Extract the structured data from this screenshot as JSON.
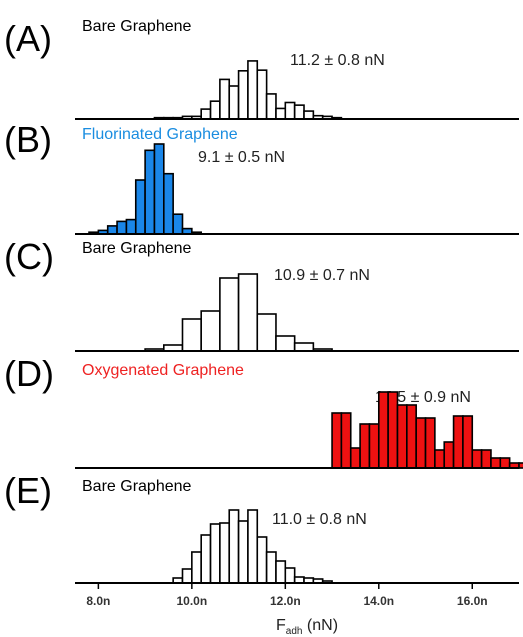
{
  "chart_data": [
    {
      "type": "bar",
      "panel": "(A)",
      "title": "Bare Graphene",
      "annotation": "11.2 ± 0.8 nN",
      "fill": "#ffffff",
      "title_color": "#000000",
      "bin_width": 0.2,
      "x": [
        9.2,
        9.4,
        9.6,
        9.8,
        10.0,
        10.2,
        10.4,
        10.6,
        10.8,
        11.0,
        11.2,
        11.4,
        11.6,
        11.8,
        12.0,
        12.2,
        12.4,
        12.6,
        12.8,
        13.0
      ],
      "values": [
        0.02,
        0.02,
        0.02,
        0.04,
        0.04,
        0.15,
        0.27,
        0.6,
        0.5,
        0.73,
        0.88,
        0.74,
        0.38,
        0.16,
        0.25,
        0.21,
        0.12,
        0.05,
        0.04,
        0.02
      ]
    },
    {
      "type": "bar",
      "panel": "(B)",
      "title": "Fluorinated Graphene",
      "annotation": "9.1 ± 0.5 nN",
      "fill": "#1a86e8",
      "title_color": "#1a8de0",
      "bin_width": 0.2,
      "x": [
        7.8,
        8.0,
        8.2,
        8.4,
        8.6,
        8.8,
        9.0,
        9.2,
        9.4,
        9.6,
        9.8,
        10.0
      ],
      "values": [
        0.02,
        0.04,
        0.09,
        0.14,
        0.16,
        0.6,
        0.93,
        1.0,
        0.67,
        0.22,
        0.06,
        0.02
      ]
    },
    {
      "type": "bar",
      "panel": "(C)",
      "title": "Bare Graphene",
      "annotation": "10.9 ± 0.7 nN",
      "fill": "#ffffff",
      "title_color": "#000000",
      "bin_width": 0.4,
      "x": [
        9.0,
        9.4,
        9.8,
        10.2,
        10.6,
        11.0,
        11.4,
        11.8,
        12.2,
        12.6
      ],
      "values": [
        0.02,
        0.06,
        0.32,
        0.4,
        0.73,
        0.77,
        0.37,
        0.15,
        0.08,
        0.02
      ]
    },
    {
      "type": "bar",
      "panel": "(D)",
      "title": "Oxygenated Graphene",
      "annotation": "14.5 ± 0.9 nN",
      "fill": "#ee1111",
      "title_color": "#ee2222",
      "bin_width": 0.2,
      "x": [
        13.0,
        13.2,
        13.4,
        13.6,
        13.8,
        14.0,
        14.2,
        14.4,
        14.6,
        14.8,
        15.0,
        15.2,
        15.4,
        15.6,
        15.8,
        16.0,
        16.2,
        16.4,
        16.6,
        16.8,
        17.0
      ],
      "values": [
        0.55,
        0.55,
        0.2,
        0.44,
        0.44,
        0.76,
        0.76,
        0.63,
        0.63,
        0.5,
        0.5,
        0.18,
        0.26,
        0.52,
        0.52,
        0.18,
        0.18,
        0.1,
        0.1,
        0.05,
        0.05
      ]
    },
    {
      "type": "bar",
      "panel": "(E)",
      "title": "Bare Graphene",
      "annotation": "11.0 ± 0.8 nN",
      "fill": "#ffffff",
      "title_color": "#000000",
      "bin_width": 0.2,
      "x": [
        9.6,
        9.8,
        10.0,
        10.2,
        10.4,
        10.6,
        10.8,
        11.0,
        11.2,
        11.4,
        11.6,
        11.8,
        12.0,
        12.2,
        12.4,
        12.6,
        12.8
      ],
      "values": [
        0.05,
        0.14,
        0.31,
        0.48,
        0.59,
        0.6,
        0.73,
        0.62,
        0.73,
        0.46,
        0.31,
        0.22,
        0.15,
        0.06,
        0.05,
        0.04,
        0.02
      ]
    }
  ],
  "xaxis": {
    "range": [
      7.5,
      17.0
    ],
    "ticks": [
      8.0,
      10.0,
      12.0,
      14.0,
      16.0
    ],
    "tick_labels": [
      "8.0n",
      "10.0n",
      "12.0n",
      "14.0n",
      "16.0n"
    ],
    "label": "F",
    "label_subscript": "adh",
    "label_unit": " (nN)"
  }
}
